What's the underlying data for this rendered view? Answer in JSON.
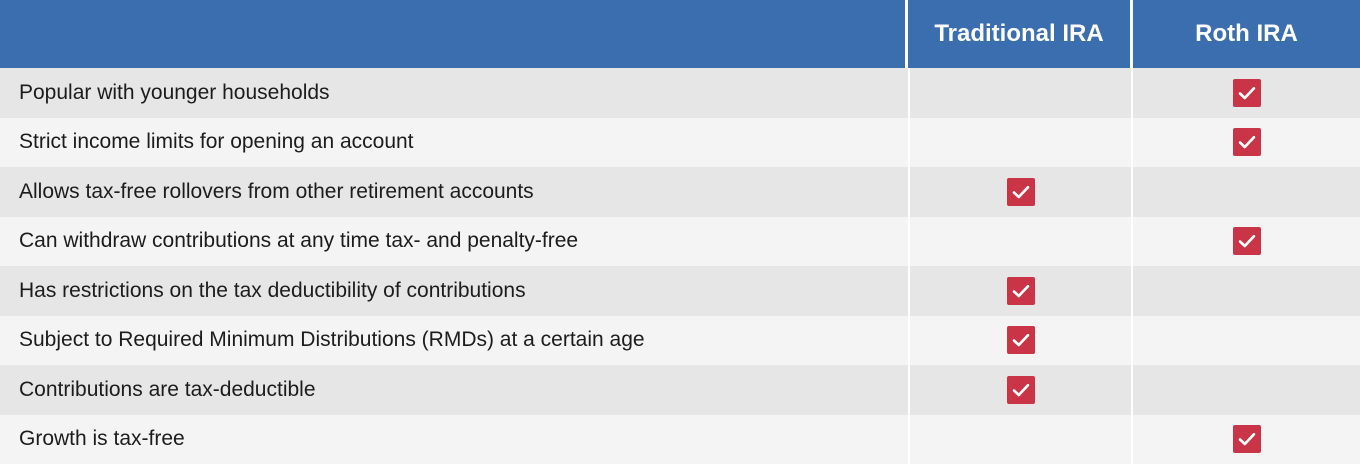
{
  "table": {
    "headers": [
      "",
      "Traditional IRA",
      "Roth IRA"
    ],
    "rows": [
      {
        "label": "Popular with younger households",
        "traditional": false,
        "roth": true
      },
      {
        "label": "Strict income limits for opening an account",
        "traditional": false,
        "roth": true
      },
      {
        "label": "Allows tax-free rollovers from other retirement accounts",
        "traditional": true,
        "roth": false
      },
      {
        "label": "Can withdraw contributions at any time tax- and penalty-free",
        "traditional": false,
        "roth": true
      },
      {
        "label": "Has restrictions on the tax deductibility of contributions",
        "traditional": true,
        "roth": false
      },
      {
        "label": "Subject to Required Minimum Distributions (RMDs) at a certain age",
        "traditional": true,
        "roth": false
      },
      {
        "label": "Contributions are tax-deductible",
        "traditional": true,
        "roth": false
      },
      {
        "label": "Growth is tax-free",
        "traditional": false,
        "roth": true
      }
    ]
  },
  "colors": {
    "header_bg": "#3b6eae",
    "check_bg": "#c93546",
    "row_odd": "#e6e6e6",
    "row_even": "#f4f4f4"
  },
  "icons": {
    "check": "checkmark-icon"
  }
}
